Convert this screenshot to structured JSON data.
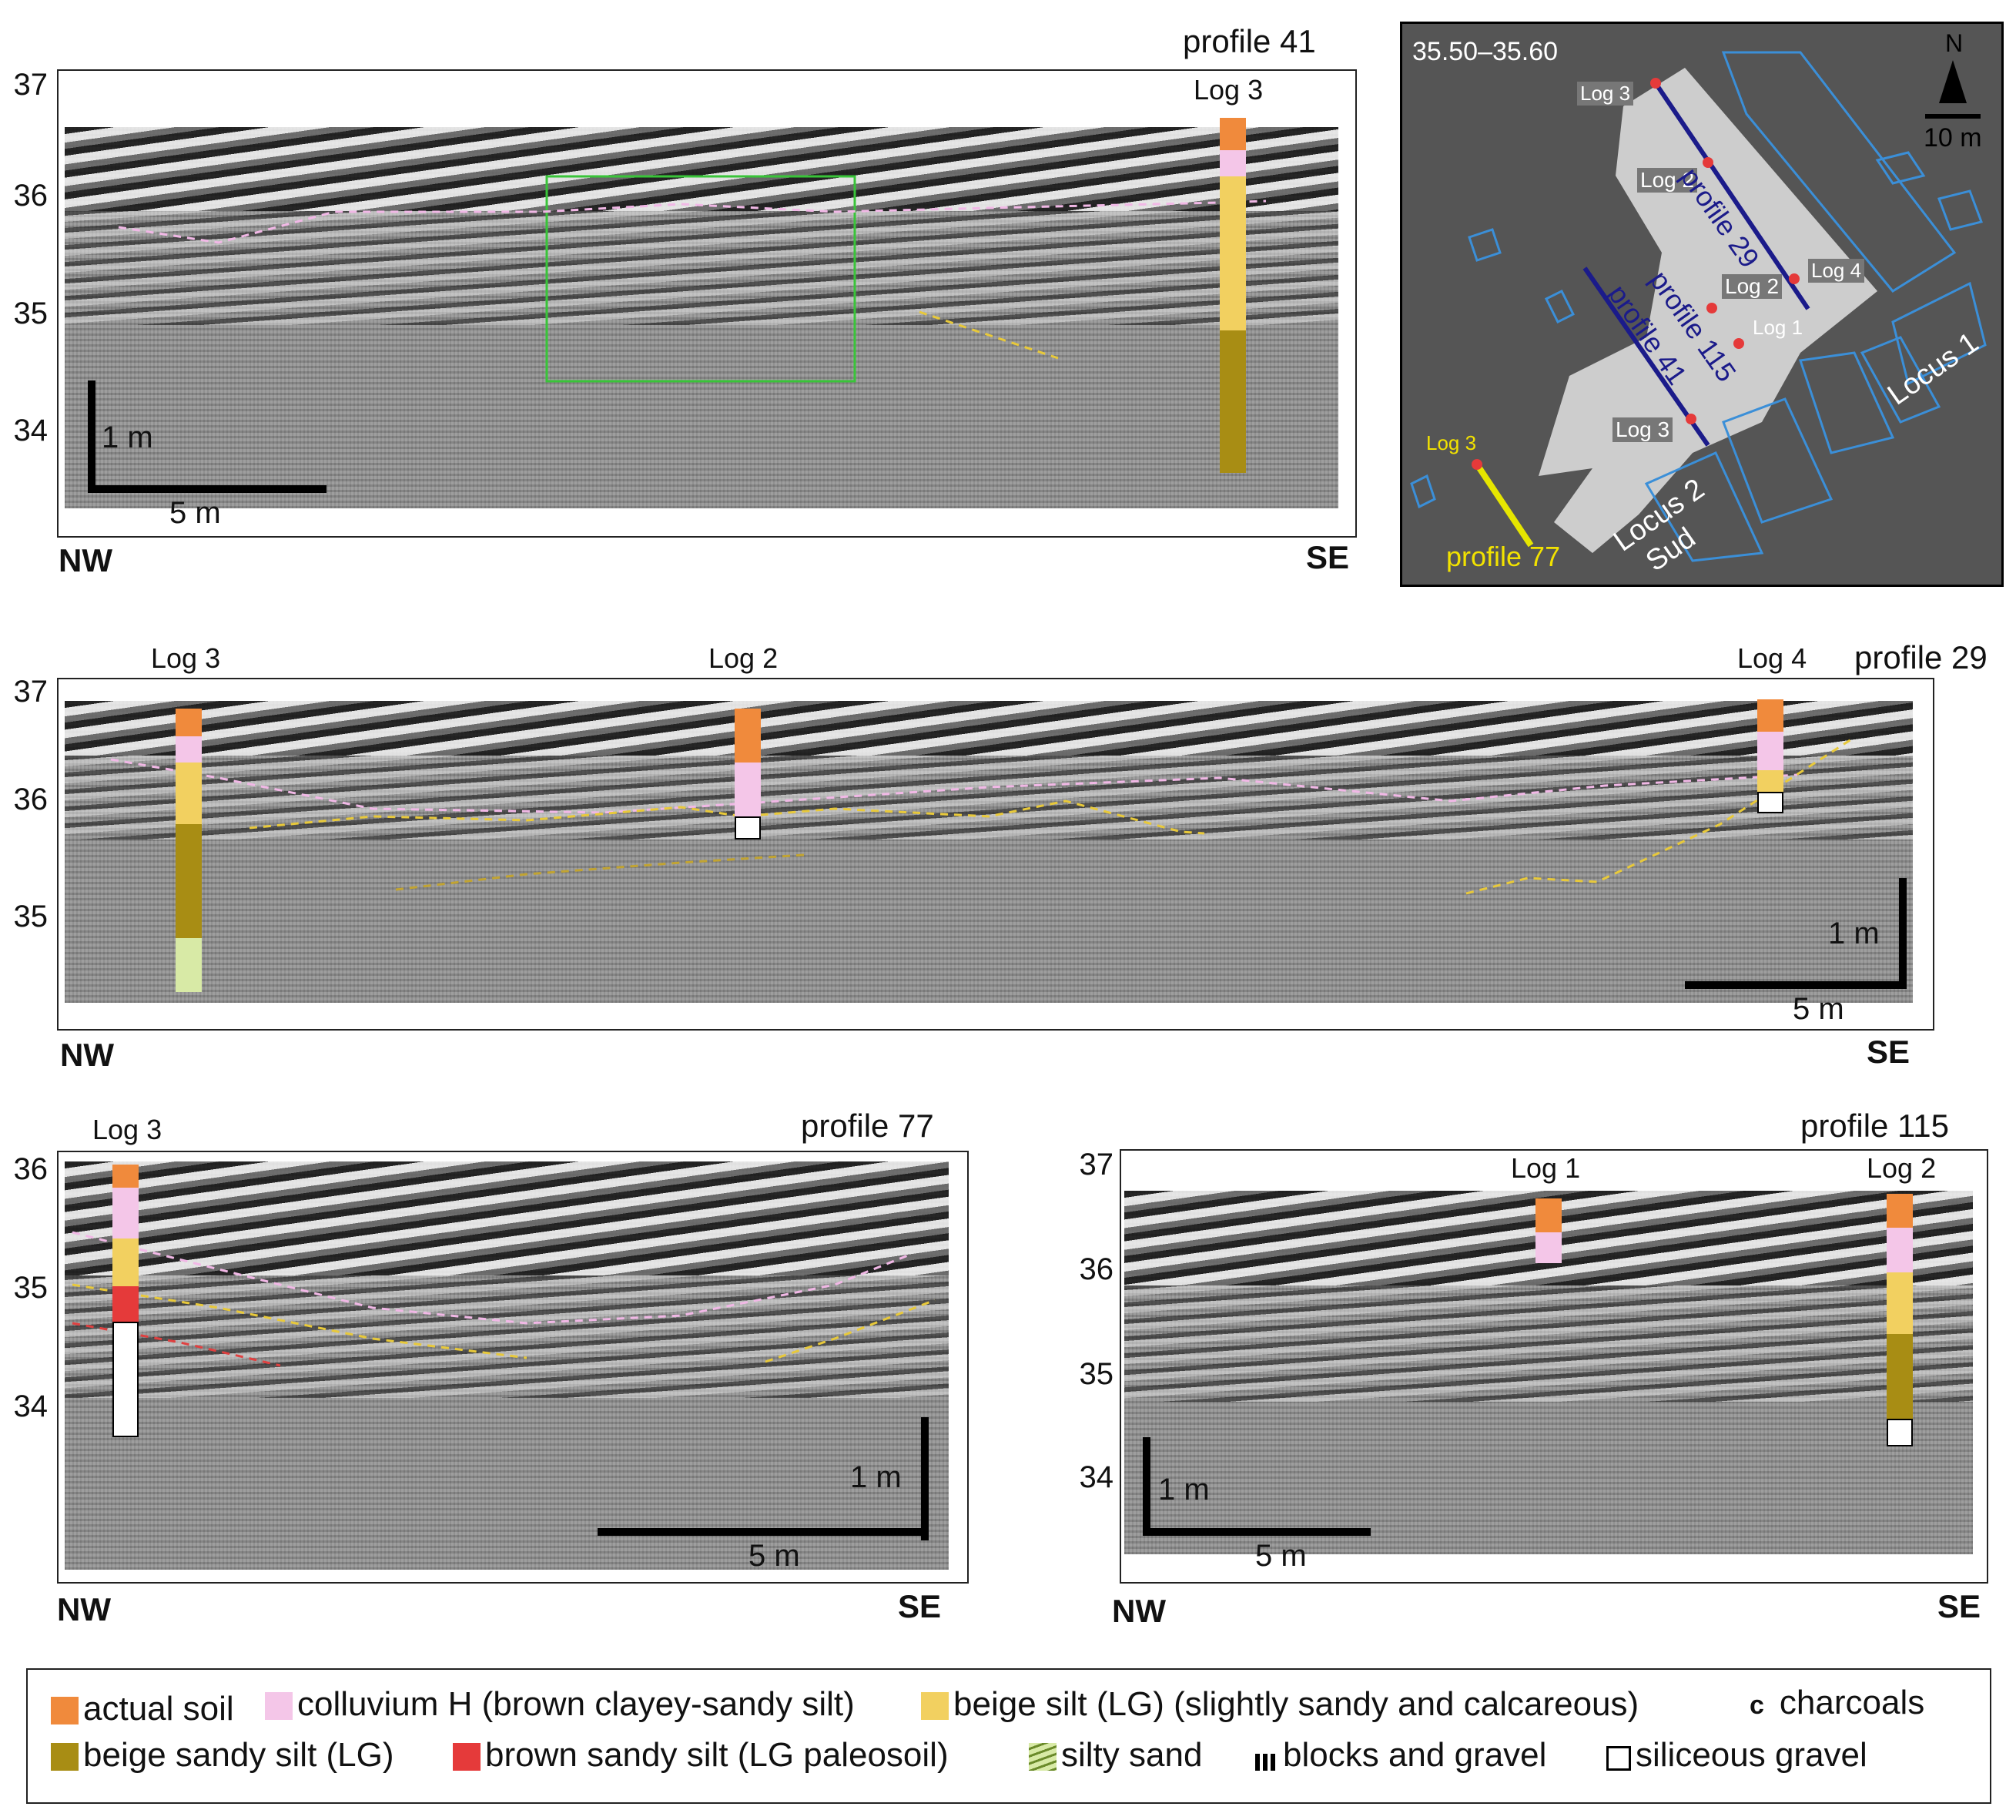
{
  "colors": {
    "actual_soil": "#f08a3c",
    "colluvium": "#f4c6e8",
    "beige_silt": "#f2d060",
    "beige_sandy_silt": "#a88d14",
    "brown_sandy_silt": "#e53a3a",
    "silty_sand": "#d8eaa6",
    "green_box": "#39c439",
    "pink_line": "#f1b8e6",
    "yellow_line": "#e8c93a",
    "red_line": "#e04040",
    "map_bg": "#555555",
    "map_line": "#1b1b8a",
    "map_outline": "#3b8fd8"
  },
  "profile41": {
    "title": "profile 41",
    "yticks": [
      "37",
      "36",
      "35",
      "34"
    ],
    "logs": [
      "Log 3"
    ],
    "scale_v": "1 m",
    "scale_h": "5 m",
    "left_dir": "NW",
    "right_dir": "SE"
  },
  "profile29": {
    "title": "profile 29",
    "yticks": [
      "37",
      "36",
      "35"
    ],
    "logs": [
      "Log 3",
      "Log 2",
      "Log 4"
    ],
    "scale_v": "1 m",
    "scale_h": "5 m",
    "left_dir": "NW",
    "right_dir": "SE"
  },
  "profile77": {
    "title": "profile 77",
    "yticks": [
      "36",
      "35",
      "34"
    ],
    "logs": [
      "Log 3"
    ],
    "scale_v": "1 m",
    "scale_h": "5 m",
    "left_dir": "NW",
    "right_dir": "SE"
  },
  "profile115": {
    "title": "profile 115",
    "yticks": [
      "37",
      "36",
      "35",
      "34"
    ],
    "logs": [
      "Log 1",
      "Log 2"
    ],
    "scale_v": "1 m",
    "scale_h": "5 m",
    "left_dir": "NW",
    "right_dir": "SE"
  },
  "map": {
    "range": "35.50–35.60",
    "north": "N",
    "scale": "10 m",
    "profile_29": "profile 29",
    "profile_115": "profile 115",
    "profile_41": "profile 41",
    "profile_77": "profile 77",
    "locus1": "Locus 1",
    "locus2": "Locus 2",
    "sud": "Sud",
    "logs": [
      "Log 3",
      "Log 2",
      "Log 2",
      "Log 4",
      "Log 1",
      "Log 3",
      "Log 3"
    ]
  },
  "legend": {
    "actual_soil": "actual soil",
    "colluvium": "colluvium H (brown clayey-sandy silt)",
    "beige_silt": "beige silt (LG) (slightly sandy and calcareous)",
    "charcoals_symbol": "c",
    "charcoals": "charcoals",
    "beige_sandy_silt": "beige sandy silt (LG)",
    "brown_sandy_silt": "brown sandy silt  (LG paleosoil)",
    "silty_sand": "silty sand",
    "blocks_gravel": "blocks and gravel",
    "siliceous_gravel": "siliceous gravel"
  }
}
